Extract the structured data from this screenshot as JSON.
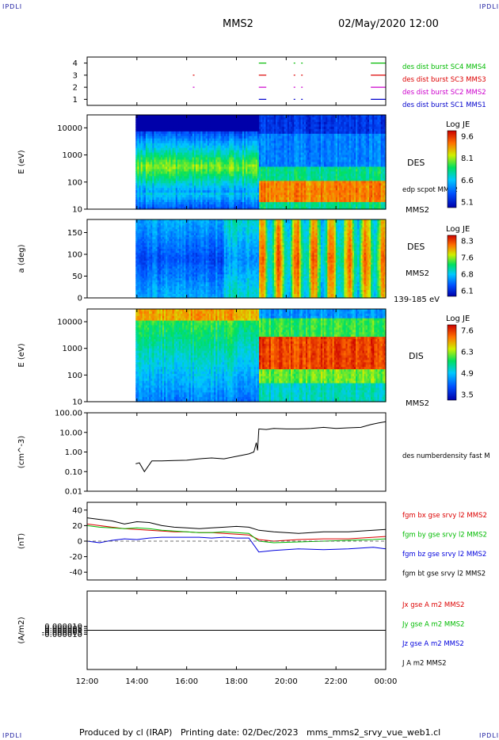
{
  "header": {
    "station": "MMS2",
    "date": "02/May/2020 12:00"
  },
  "corner_tag": "IPDLI",
  "footer": {
    "produced_by": "Produced by cl (IRAP)",
    "printing_date": "Printing date: 02/Dec/2023",
    "filename": "mms_mms2_srvy_vue_web1.cl"
  },
  "colors": {
    "mms1": "#0000cc",
    "mms2": "#cc00cc",
    "mms3": "#dd0000",
    "mms4": "#00bb00",
    "bx": "#dd0000",
    "by": "#00bb00",
    "bz": "#0000dd",
    "bt": "#000000"
  },
  "x_axis": {
    "ticks": [
      "12:00",
      "14:00",
      "16:00",
      "18:00",
      "20:00",
      "22:00",
      "00:00"
    ],
    "range_hours": [
      12,
      24
    ]
  },
  "chart_data": [
    {
      "type": "scatter",
      "panel": "burst-availability",
      "yticks": [
        "1",
        "2",
        "3",
        "4"
      ],
      "ylim": [
        0.5,
        4.5
      ],
      "series": [
        {
          "name": "des dist burst SC1 MMS1",
          "y": 1,
          "color": "#0000cc",
          "intervals": [
            [
              18.9,
              19.2
            ],
            [
              20.3,
              20.35
            ],
            [
              20.6,
              20.65
            ],
            [
              23.4,
              24.0
            ]
          ]
        },
        {
          "name": "des dist burst SC2 MMS2",
          "y": 2,
          "color": "#cc00cc",
          "intervals": [
            [
              16.25,
              16.3
            ],
            [
              18.9,
              19.2
            ],
            [
              20.3,
              20.35
            ],
            [
              20.6,
              20.65
            ],
            [
              23.4,
              24.0
            ]
          ]
        },
        {
          "name": "des dist burst SC3 MMS3",
          "y": 3,
          "color": "#dd0000",
          "intervals": [
            [
              16.25,
              16.3
            ],
            [
              18.9,
              19.2
            ],
            [
              20.3,
              20.35
            ],
            [
              20.6,
              20.65
            ],
            [
              23.4,
              24.0
            ]
          ]
        },
        {
          "name": "des dist burst SC4 MMS4",
          "y": 4,
          "color": "#00bb00",
          "intervals": [
            [
              18.9,
              19.2
            ],
            [
              20.3,
              20.35
            ],
            [
              20.6,
              20.65
            ],
            [
              23.4,
              24.0
            ]
          ]
        }
      ]
    },
    {
      "type": "heatmap",
      "panel": "des-energy",
      "ylabel": "E (eV)",
      "yscale": "log",
      "ylim": [
        10,
        30000
      ],
      "yticks": [
        "10",
        "100",
        "1000",
        "10000"
      ],
      "label": "DES",
      "sublabel": "MMS2",
      "overlay": "edp scpot MMS2",
      "data_start_hour": 13.95,
      "colorbar": {
        "title": "Log JE",
        "max": "9.6",
        "mid_hi": "8.1",
        "mid_lo": "6.6",
        "min": "5.1"
      }
    },
    {
      "type": "heatmap",
      "panel": "des-pitch-angle",
      "ylabel": "a (deg)",
      "ylim": [
        0,
        180
      ],
      "yticks": [
        "0",
        "50",
        "100",
        "150"
      ],
      "label": "DES",
      "sublabel": "MMS2",
      "energy_range": "139-185 eV",
      "data_start_hour": 13.95,
      "colorbar": {
        "title": "Log JE",
        "max": "8.3",
        "mid_hi": "7.6",
        "mid_lo": "6.8",
        "min": "6.1"
      }
    },
    {
      "type": "heatmap",
      "panel": "dis-energy",
      "ylabel": "E (eV)",
      "yscale": "log",
      "ylim": [
        10,
        30000
      ],
      "yticks": [
        "10",
        "100",
        "1000",
        "10000"
      ],
      "label": "DIS",
      "sublabel": "MMS2",
      "data_start_hour": 13.95,
      "colorbar": {
        "title": "Log JE",
        "max": "7.6",
        "mid_hi": "6.3",
        "mid_lo": "4.9",
        "min": "3.5"
      }
    },
    {
      "type": "line",
      "panel": "density",
      "ylabel": "(cm^-3)",
      "yscale": "log",
      "ylim": [
        0.01,
        100
      ],
      "yticks": [
        "0.01",
        "0.10",
        "1.00",
        "10.00",
        "100.00"
      ],
      "series": [
        {
          "name": "des numberdensity fast M",
          "color": "#000000",
          "x": [
            13.95,
            14.1,
            14.3,
            14.6,
            15.0,
            15.5,
            16.0,
            16.5,
            17.0,
            17.5,
            18.0,
            18.5,
            18.7,
            18.8,
            18.85,
            18.9,
            19.2,
            19.5,
            20.0,
            20.5,
            21.0,
            21.5,
            22.0,
            22.5,
            23.0,
            23.4,
            23.7,
            24.0
          ],
          "y": [
            0.25,
            0.28,
            0.1,
            0.35,
            0.35,
            0.37,
            0.38,
            0.45,
            0.5,
            0.45,
            0.6,
            0.8,
            1.0,
            3.0,
            1.2,
            15,
            14,
            16,
            15,
            15,
            16,
            18,
            16,
            17,
            18,
            25,
            30,
            35
          ]
        }
      ]
    },
    {
      "type": "line",
      "panel": "magnetic-field",
      "ylabel": "(nT)",
      "ylim": [
        -50,
        50
      ],
      "yticks": [
        "-40",
        "-20",
        "0",
        "20",
        "40"
      ],
      "series": [
        {
          "name": "fgm bx gse srvy l2 MMS2",
          "color": "#dd0000",
          "x": [
            12.0,
            12.5,
            13.0,
            13.5,
            14.0,
            14.5,
            15.0,
            15.5,
            16.0,
            16.5,
            17.0,
            17.5,
            18.0,
            18.5,
            18.9,
            19.5,
            20.5,
            21.5,
            22.5,
            23.5,
            24.0
          ],
          "y": [
            22,
            20,
            18,
            16,
            15,
            14,
            13,
            12,
            12,
            11,
            11,
            10,
            9,
            8,
            2,
            0,
            2,
            3,
            3,
            5,
            6
          ]
        },
        {
          "name": "fgm by gse srvy l2 MMS2",
          "color": "#00bb00",
          "x": [
            12.0,
            12.5,
            13.0,
            13.5,
            14.0,
            14.5,
            15.0,
            15.5,
            16.0,
            16.5,
            17.0,
            17.5,
            18.0,
            18.5,
            18.9,
            19.5,
            20.5,
            21.5,
            22.5,
            23.5,
            24.0
          ],
          "y": [
            20,
            18,
            17,
            16,
            17,
            16,
            14,
            13,
            12,
            11,
            11,
            12,
            11,
            10,
            0,
            -2,
            -1,
            0,
            1,
            2,
            3
          ]
        },
        {
          "name": "fgm bz gse srvy l2 MMS2",
          "color": "#0000dd",
          "x": [
            12.0,
            12.5,
            13.0,
            13.5,
            14.0,
            14.5,
            15.0,
            15.5,
            16.0,
            16.5,
            17.0,
            17.5,
            18.0,
            18.5,
            18.9,
            19.5,
            20.5,
            21.5,
            22.5,
            23.5,
            24.0
          ],
          "y": [
            0,
            -2,
            1,
            3,
            2,
            4,
            5,
            5,
            5,
            5,
            4,
            5,
            4,
            4,
            -14,
            -12,
            -10,
            -11,
            -10,
            -8,
            -10
          ]
        },
        {
          "name": "fgm bt gse srvy l2 MMS2",
          "color": "#000000",
          "x": [
            12.0,
            12.5,
            13.0,
            13.5,
            14.0,
            14.5,
            15.0,
            15.5,
            16.0,
            16.5,
            17.0,
            17.5,
            18.0,
            18.5,
            18.9,
            19.5,
            20.5,
            21.5,
            22.5,
            23.5,
            24.0
          ],
          "y": [
            30,
            28,
            26,
            22,
            25,
            24,
            20,
            18,
            17,
            16,
            17,
            18,
            19,
            18,
            14,
            12,
            10,
            12,
            12,
            14,
            15
          ]
        }
      ]
    },
    {
      "type": "line",
      "panel": "current-density",
      "ylabel": "(A/m2)",
      "ylim": [
        -0.0001,
        0.0001
      ],
      "yticks": [
        "-0.000010",
        "-0.000005",
        "0.000000",
        "0.000005",
        "0.000010"
      ],
      "series": [
        {
          "name": "Jx gse A m2 MMS2",
          "color": "#dd0000",
          "x": [
            12,
            24
          ],
          "y": [
            0,
            0
          ]
        },
        {
          "name": "Jy gse A m2 MMS2",
          "color": "#00bb00",
          "x": [
            12,
            24
          ],
          "y": [
            0,
            0
          ]
        },
        {
          "name": "Jz gse A m2 MMS2",
          "color": "#0000dd",
          "x": [
            12,
            24
          ],
          "y": [
            0,
            0
          ]
        },
        {
          "name": "J A m2 MMS2",
          "color": "#000000",
          "x": [
            12,
            24
          ],
          "y": [
            0,
            0
          ]
        }
      ]
    }
  ]
}
